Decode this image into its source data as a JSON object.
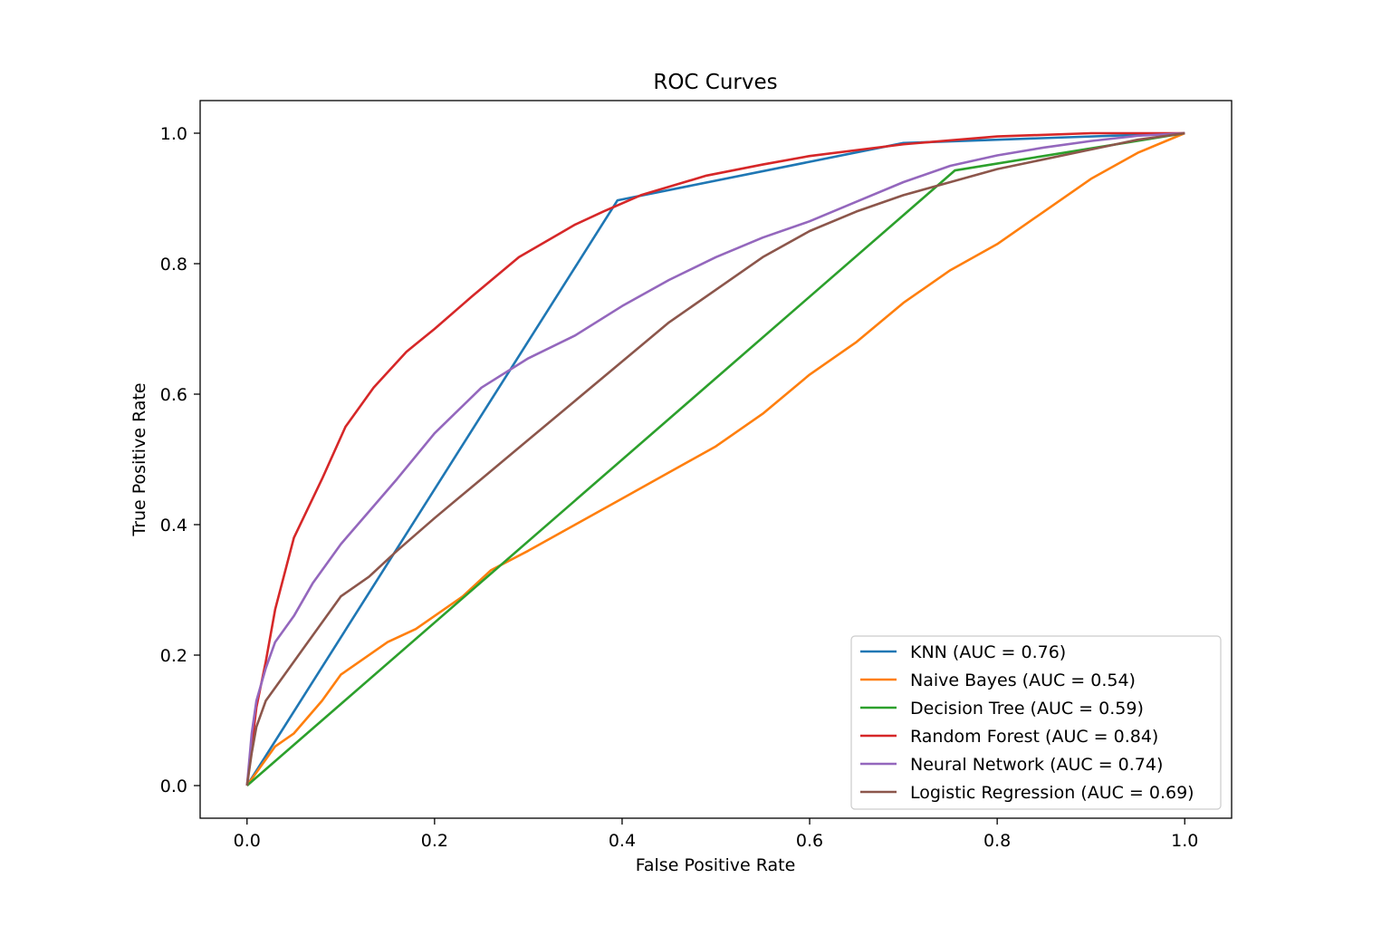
{
  "chart_data": {
    "type": "line",
    "title": "ROC Curves",
    "xlabel": "False Positive Rate",
    "ylabel": "True Positive Rate",
    "xlim": [
      -0.05,
      1.05
    ],
    "ylim": [
      -0.05,
      1.05
    ],
    "xticks": [
      0.0,
      0.2,
      0.4,
      0.6,
      0.8,
      1.0
    ],
    "yticks": [
      0.0,
      0.2,
      0.4,
      0.6,
      0.8,
      1.0
    ],
    "xtick_labels": [
      "0.0",
      "0.2",
      "0.4",
      "0.6",
      "0.8",
      "1.0"
    ],
    "ytick_labels": [
      "0.0",
      "0.2",
      "0.4",
      "0.6",
      "0.8",
      "1.0"
    ],
    "grid": false,
    "legend_position": "lower-right",
    "series": [
      {
        "name": "KNN (AUC = 0.76)",
        "color": "#1f77b4",
        "x": [
          0,
          0.395,
          0.7,
          1.0
        ],
        "y": [
          0,
          0.897,
          0.985,
          1.0
        ]
      },
      {
        "name": "Naive Bayes (AUC = 0.54)",
        "color": "#ff7f0e",
        "x": [
          0,
          0.03,
          0.05,
          0.08,
          0.1,
          0.12,
          0.15,
          0.18,
          0.2,
          0.23,
          0.26,
          0.3,
          0.35,
          0.4,
          0.45,
          0.5,
          0.55,
          0.6,
          0.65,
          0.7,
          0.75,
          0.8,
          0.85,
          0.9,
          0.95,
          1.0
        ],
        "y": [
          0,
          0.06,
          0.08,
          0.13,
          0.17,
          0.19,
          0.22,
          0.24,
          0.26,
          0.29,
          0.33,
          0.36,
          0.4,
          0.44,
          0.48,
          0.52,
          0.57,
          0.63,
          0.68,
          0.74,
          0.79,
          0.83,
          0.88,
          0.93,
          0.97,
          1.0
        ]
      },
      {
        "name": "Decision Tree (AUC = 0.59)",
        "color": "#2ca02c",
        "x": [
          0,
          0.755,
          1.0
        ],
        "y": [
          0,
          0.943,
          1.0
        ]
      },
      {
        "name": "Random Forest (AUC = 0.84)",
        "color": "#d62728",
        "x": [
          0,
          0.01,
          0.02,
          0.03,
          0.05,
          0.08,
          0.105,
          0.135,
          0.17,
          0.2,
          0.24,
          0.29,
          0.35,
          0.38,
          0.42,
          0.49,
          0.55,
          0.6,
          0.7,
          0.8,
          0.9,
          1.0
        ],
        "y": [
          0,
          0.12,
          0.19,
          0.27,
          0.38,
          0.47,
          0.55,
          0.61,
          0.665,
          0.7,
          0.75,
          0.81,
          0.86,
          0.88,
          0.905,
          0.935,
          0.952,
          0.965,
          0.983,
          0.995,
          1.0,
          1.0
        ]
      },
      {
        "name": "Neural Network (AUC = 0.74)",
        "color": "#9467bd",
        "x": [
          0,
          0.005,
          0.01,
          0.02,
          0.03,
          0.05,
          0.07,
          0.1,
          0.13,
          0.16,
          0.2,
          0.25,
          0.3,
          0.35,
          0.4,
          0.45,
          0.5,
          0.55,
          0.6,
          0.65,
          0.7,
          0.75,
          0.8,
          0.85,
          0.9,
          0.95,
          1.0
        ],
        "y": [
          0,
          0.08,
          0.13,
          0.18,
          0.22,
          0.26,
          0.31,
          0.37,
          0.42,
          0.47,
          0.54,
          0.61,
          0.655,
          0.69,
          0.735,
          0.775,
          0.81,
          0.84,
          0.865,
          0.895,
          0.925,
          0.95,
          0.966,
          0.978,
          0.988,
          0.996,
          1.0
        ]
      },
      {
        "name": "Logistic Regression (AUC = 0.69)",
        "color": "#8c564b",
        "x": [
          0,
          0.005,
          0.01,
          0.02,
          0.04,
          0.06,
          0.08,
          0.1,
          0.13,
          0.16,
          0.2,
          0.25,
          0.3,
          0.35,
          0.4,
          0.45,
          0.5,
          0.55,
          0.6,
          0.65,
          0.7,
          0.75,
          0.8,
          0.85,
          0.9,
          0.95,
          1.0
        ],
        "y": [
          0,
          0.05,
          0.09,
          0.13,
          0.17,
          0.21,
          0.25,
          0.29,
          0.32,
          0.36,
          0.41,
          0.47,
          0.53,
          0.59,
          0.65,
          0.71,
          0.76,
          0.81,
          0.85,
          0.88,
          0.905,
          0.925,
          0.945,
          0.96,
          0.975,
          0.99,
          1.0
        ]
      }
    ]
  }
}
